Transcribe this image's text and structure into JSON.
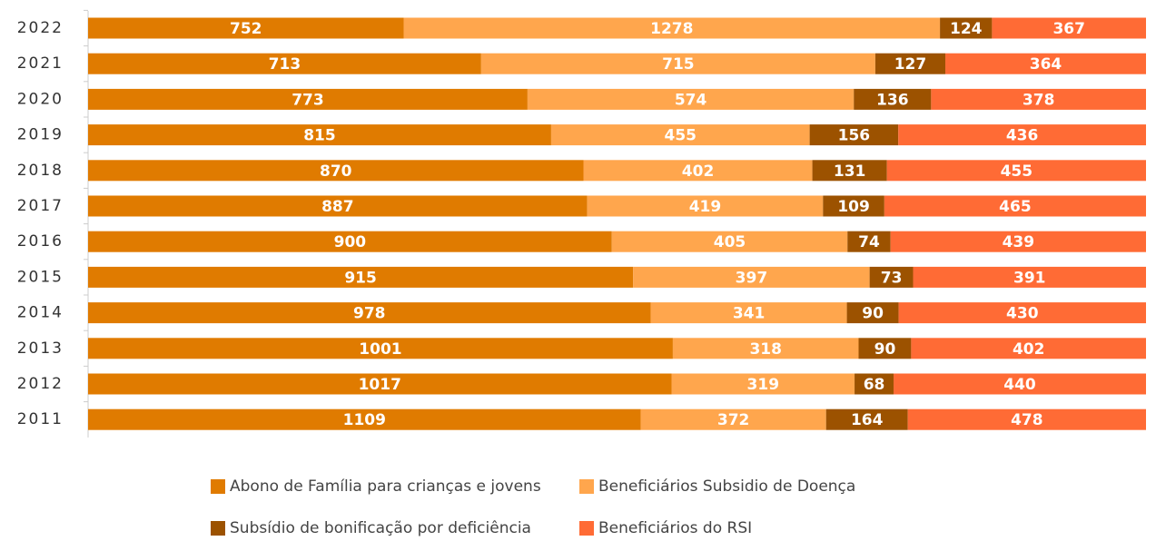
{
  "chart_data": {
    "type": "bar",
    "orientation": "horizontal",
    "stacked": "percent",
    "categories": [
      "2022",
      "2021",
      "2020",
      "2019",
      "2018",
      "2017",
      "2016",
      "2015",
      "2014",
      "2013",
      "2012",
      "2011"
    ],
    "series": [
      {
        "name": "Abono de Família para crianças e jovens",
        "color": "#e07b00",
        "values": [
          752,
          713,
          773,
          815,
          870,
          887,
          900,
          915,
          978,
          1001,
          1017,
          1109
        ]
      },
      {
        "name": "Beneficiários Subsidio de Doença",
        "color": "#ffa64d",
        "values": [
          1278,
          715,
          574,
          455,
          402,
          419,
          405,
          397,
          341,
          318,
          319,
          372
        ]
      },
      {
        "name": "Subsídio de bonificação por deficiência",
        "color": "#9c5200",
        "values": [
          124,
          127,
          136,
          156,
          131,
          109,
          74,
          73,
          90,
          90,
          68,
          164
        ]
      },
      {
        "name": "Beneficiários do RSI",
        "color": "#ff6b35",
        "values": [
          367,
          364,
          378,
          436,
          455,
          465,
          439,
          391,
          430,
          402,
          440,
          478
        ]
      }
    ]
  }
}
